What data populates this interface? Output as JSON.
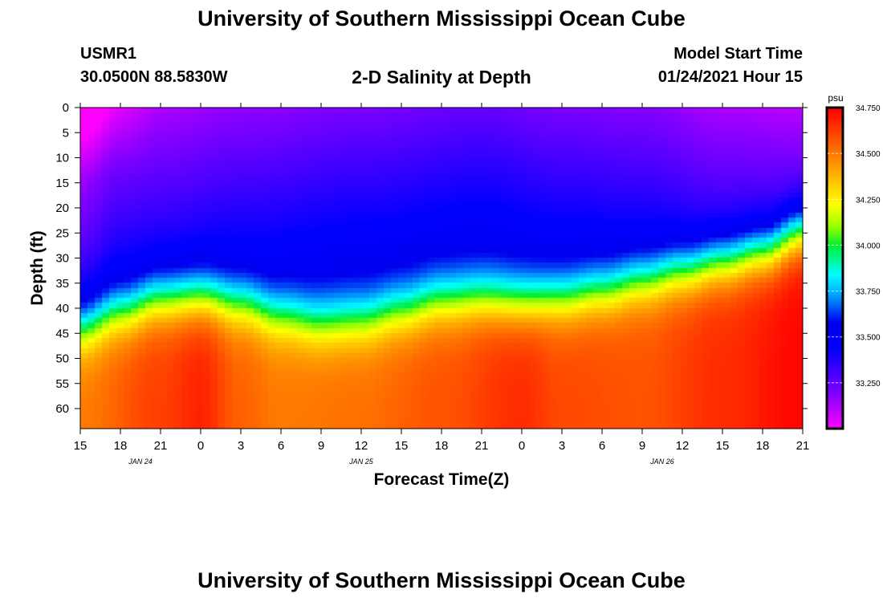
{
  "header": {
    "title": "University of Southern Mississippi Ocean Cube",
    "station": "USMR1",
    "coords": "30.0500N 88.5830W",
    "subtitle": "2-D Salinity at Depth",
    "start_label": "Model Start Time",
    "start_value": "01/24/2021 Hour 15"
  },
  "footer": {
    "title": "University of Southern Mississippi Ocean Cube"
  },
  "chart_data": {
    "type": "heatmap",
    "title": "2-D Salinity at Depth",
    "xlabel": "Forecast Time(Z)",
    "ylabel": "Depth (ft)",
    "x_hours": [
      0,
      3,
      6,
      9,
      12,
      15,
      18,
      21,
      24,
      27,
      30,
      33,
      36,
      39,
      42,
      45,
      48,
      51,
      54
    ],
    "x_tick_labels": [
      "15",
      "18",
      "21",
      "0",
      "3",
      "6",
      "9",
      "12",
      "15",
      "18",
      "21",
      "0",
      "3",
      "6",
      "9",
      "12",
      "15",
      "18",
      "21"
    ],
    "date_labels": [
      {
        "label": "JAN 24",
        "hour": 4.5
      },
      {
        "label": "JAN 25",
        "hour": 21
      },
      {
        "label": "JAN 26",
        "hour": 43.5
      }
    ],
    "xlim": [
      0,
      54
    ],
    "y_ticks": [
      0,
      5,
      10,
      15,
      20,
      25,
      30,
      35,
      40,
      45,
      50,
      55,
      60
    ],
    "ylim": [
      0,
      64
    ],
    "colorbar": {
      "unit": "psu",
      "min": 33.0,
      "max": 34.75,
      "tick_values": [
        34.75,
        34.5,
        34.25,
        34.0,
        33.75,
        33.5,
        33.25
      ],
      "tick_labels": [
        "34.750",
        "34.500",
        "34.250",
        "34.000",
        "33.750",
        "33.500",
        "33.250"
      ],
      "colors": [
        "#ff00ff",
        "#8800ff",
        "#0000ff",
        "#0000ee",
        "#00aaff",
        "#00ffff",
        "#00ee33",
        "#99ff00",
        "#ffff00",
        "#ffaa00",
        "#ff5500",
        "#ff0000"
      ],
      "color_stops": [
        0.0,
        0.1,
        0.25,
        0.33,
        0.42,
        0.48,
        0.57,
        0.63,
        0.7,
        0.8,
        0.9,
        1.0
      ]
    },
    "halocline_depth_ft": [
      {
        "hour": 0,
        "depth": 44
      },
      {
        "hour": 3,
        "depth": 41
      },
      {
        "hour": 6,
        "depth": 38.5
      },
      {
        "hour": 9,
        "depth": 38
      },
      {
        "hour": 12,
        "depth": 39.5
      },
      {
        "hour": 15,
        "depth": 42
      },
      {
        "hour": 18,
        "depth": 43.5
      },
      {
        "hour": 21,
        "depth": 43
      },
      {
        "hour": 24,
        "depth": 41
      },
      {
        "hour": 27,
        "depth": 39
      },
      {
        "hour": 30,
        "depth": 38.5
      },
      {
        "hour": 33,
        "depth": 39
      },
      {
        "hour": 36,
        "depth": 38.5
      },
      {
        "hour": 39,
        "depth": 37
      },
      {
        "hour": 42,
        "depth": 35
      },
      {
        "hour": 45,
        "depth": 33
      },
      {
        "hour": 48,
        "depth": 31
      },
      {
        "hour": 51,
        "depth": 29
      },
      {
        "hour": 54,
        "depth": 25
      }
    ],
    "surface_salinity_psu": [
      {
        "hour": 0,
        "value": 33.0
      },
      {
        "hour": 3,
        "value": 33.1
      },
      {
        "hour": 6,
        "value": 33.12
      },
      {
        "hour": 12,
        "value": 33.16
      },
      {
        "hour": 21,
        "value": 33.2
      },
      {
        "hour": 30,
        "value": 33.24
      },
      {
        "hour": 36,
        "value": 33.2
      },
      {
        "hour": 42,
        "value": 33.18
      },
      {
        "hour": 48,
        "value": 33.12
      },
      {
        "hour": 54,
        "value": 33.1
      }
    ],
    "bottom_salinity_psu": [
      {
        "hour": 0,
        "value": 34.5
      },
      {
        "hour": 6,
        "value": 34.62
      },
      {
        "hour": 9,
        "value": 34.68
      },
      {
        "hour": 12,
        "value": 34.55
      },
      {
        "hour": 15,
        "value": 34.5
      },
      {
        "hour": 21,
        "value": 34.52
      },
      {
        "hour": 27,
        "value": 34.58
      },
      {
        "hour": 33,
        "value": 34.66
      },
      {
        "hour": 36,
        "value": 34.6
      },
      {
        "hour": 42,
        "value": 34.58
      },
      {
        "hour": 48,
        "value": 34.66
      },
      {
        "hour": 54,
        "value": 34.74
      }
    ]
  }
}
